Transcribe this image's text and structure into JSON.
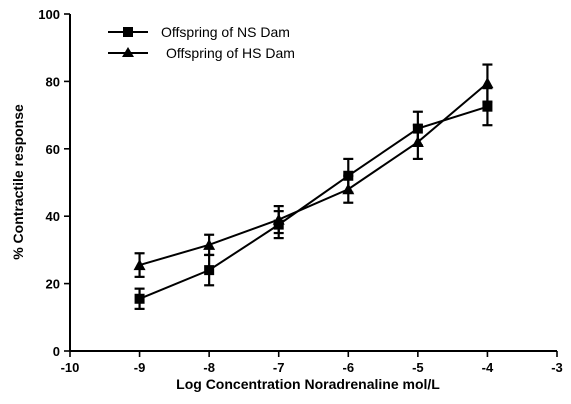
{
  "chart_data": {
    "type": "line",
    "xlabel": "Log Concentration Noradrenaline mol/L",
    "ylabel": "% Contractile response",
    "xlim": [
      -10,
      -3
    ],
    "ylim": [
      0,
      100
    ],
    "x_ticks": [
      -10,
      -9,
      -8,
      -7,
      -6,
      -5,
      -4,
      -3
    ],
    "y_ticks": [
      0,
      20,
      40,
      60,
      80,
      100
    ],
    "grid": false,
    "legend_position": "top-left",
    "series": [
      {
        "name": "Offspring of NS Dam",
        "marker": "square",
        "x": [
          -9,
          -8,
          -7,
          -6,
          -5,
          -4
        ],
        "y": [
          15.5,
          24,
          37.5,
          52,
          66,
          72.5
        ],
        "error": [
          3,
          4.5,
          4,
          5,
          5,
          5.5
        ]
      },
      {
        "name": "Offspring of HS Dam",
        "marker": "triangle",
        "x": [
          -9,
          -8,
          -7,
          -6,
          -5,
          -4
        ],
        "y": [
          25.5,
          31.5,
          39,
          48,
          62,
          79.5
        ],
        "error": [
          3.5,
          3,
          4,
          4,
          5,
          5.5
        ]
      }
    ]
  }
}
